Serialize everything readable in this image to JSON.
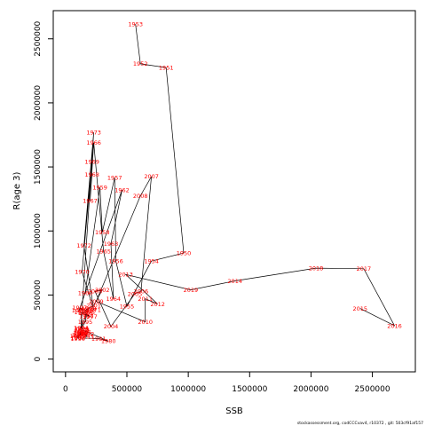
{
  "chart_data": {
    "type": "line",
    "xlabel": "SSB",
    "ylabel": "R(age 3)",
    "xlim": [
      -100000,
      2850000
    ],
    "ylim": [
      -100000,
      2720000
    ],
    "x_ticks": [
      "0",
      "500000",
      "1000000",
      "1500000",
      "2000000",
      "2500000"
    ],
    "x_tick_values": [
      0,
      500000,
      1000000,
      1500000,
      2000000,
      2500000
    ],
    "y_ticks": [
      "0",
      "500000",
      "1000000",
      "1500000",
      "2000000",
      "2500000"
    ],
    "y_tick_values": [
      0,
      500000,
      1000000,
      1500000,
      2000000,
      2500000
    ],
    "line_color": "#000000",
    "label_color": "#ff0000",
    "points": [
      {
        "year": "1950",
        "x": 963000,
        "y": 828000
      },
      {
        "year": "1951",
        "x": 820000,
        "y": 2275000
      },
      {
        "year": "1952",
        "x": 610000,
        "y": 2305000
      },
      {
        "year": "1953",
        "x": 570000,
        "y": 2615000
      },
      {
        "year": "1954",
        "x": 700000,
        "y": 765000
      },
      {
        "year": "1955",
        "x": 500000,
        "y": 412000
      },
      {
        "year": "1956",
        "x": 410000,
        "y": 765000
      },
      {
        "year": "1957",
        "x": 400000,
        "y": 1415000
      },
      {
        "year": "1958",
        "x": 300000,
        "y": 990000
      },
      {
        "year": "1959",
        "x": 280000,
        "y": 1340000
      },
      {
        "year": "1960",
        "x": 160000,
        "y": 515000
      },
      {
        "year": "1961",
        "x": 110000,
        "y": 380000
      },
      {
        "year": "1962",
        "x": 460000,
        "y": 1320000
      },
      {
        "year": "1963",
        "x": 370000,
        "y": 900000
      },
      {
        "year": "1964",
        "x": 390000,
        "y": 470000
      },
      {
        "year": "1965",
        "x": 310000,
        "y": 840000
      },
      {
        "year": "1966",
        "x": 230000,
        "y": 1690000
      },
      {
        "year": "1967",
        "x": 200000,
        "y": 1235000
      },
      {
        "year": "1968",
        "x": 215000,
        "y": 1440000
      },
      {
        "year": "1969",
        "x": 215000,
        "y": 1540000
      },
      {
        "year": "1970",
        "x": 135000,
        "y": 680000
      },
      {
        "year": "1971",
        "x": 230000,
        "y": 385000
      },
      {
        "year": "1972",
        "x": 150000,
        "y": 885000
      },
      {
        "year": "1973",
        "x": 230000,
        "y": 1770000
      },
      {
        "year": "1974",
        "x": 125000,
        "y": 240000
      },
      {
        "year": "1975",
        "x": 190000,
        "y": 395000
      },
      {
        "year": "1976",
        "x": 160000,
        "y": 360000
      },
      {
        "year": "1977",
        "x": 200000,
        "y": 330000
      },
      {
        "year": "1978",
        "x": 130000,
        "y": 365000
      },
      {
        "year": "1979",
        "x": 135000,
        "y": 230000
      },
      {
        "year": "1980",
        "x": 350000,
        "y": 140000
      },
      {
        "year": "1981",
        "x": 270000,
        "y": 160000
      },
      {
        "year": "1982",
        "x": 100000,
        "y": 165000
      },
      {
        "year": "1983",
        "x": 95000,
        "y": 180000
      },
      {
        "year": "1984",
        "x": 125000,
        "y": 205000
      },
      {
        "year": "1985",
        "x": 120000,
        "y": 200000
      },
      {
        "year": "1986",
        "x": 150000,
        "y": 210000
      },
      {
        "year": "1987",
        "x": 120000,
        "y": 190000
      },
      {
        "year": "1988",
        "x": 125000,
        "y": 210000
      },
      {
        "year": "1989",
        "x": 130000,
        "y": 225000
      },
      {
        "year": "1990",
        "x": 100000,
        "y": 160000
      },
      {
        "year": "1991",
        "x": 110000,
        "y": 185000
      },
      {
        "year": "1992",
        "x": 175000,
        "y": 195000
      },
      {
        "year": "1993",
        "x": 170000,
        "y": 175000
      },
      {
        "year": "1994",
        "x": 130000,
        "y": 240000
      },
      {
        "year": "1995",
        "x": 160000,
        "y": 290000
      },
      {
        "year": "1996",
        "x": 170000,
        "y": 335000
      },
      {
        "year": "1997",
        "x": 115000,
        "y": 400000
      },
      {
        "year": "1998",
        "x": 180000,
        "y": 365000
      },
      {
        "year": "1999",
        "x": 190000,
        "y": 395000
      },
      {
        "year": "2000",
        "x": 160000,
        "y": 380000
      },
      {
        "year": "2001",
        "x": 230000,
        "y": 420000
      },
      {
        "year": "2002",
        "x": 300000,
        "y": 540000
      },
      {
        "year": "2003",
        "x": 240000,
        "y": 530000
      },
      {
        "year": "2004",
        "x": 370000,
        "y": 255000
      },
      {
        "year": "2005",
        "x": 565000,
        "y": 510000
      },
      {
        "year": "2006",
        "x": 615000,
        "y": 530000
      },
      {
        "year": "2007",
        "x": 700000,
        "y": 1425000
      },
      {
        "year": "2008",
        "x": 610000,
        "y": 1275000
      },
      {
        "year": "2009",
        "x": 250000,
        "y": 450000
      },
      {
        "year": "2010",
        "x": 650000,
        "y": 290000
      },
      {
        "year": "2011",
        "x": 650000,
        "y": 470000
      },
      {
        "year": "2012",
        "x": 750000,
        "y": 430000
      },
      {
        "year": "2013",
        "x": 490000,
        "y": 660000
      },
      {
        "year": "2014",
        "x": 1380000,
        "y": 610000
      },
      {
        "year": "2015",
        "x": 2400000,
        "y": 395000
      },
      {
        "year": "2016",
        "x": 2680000,
        "y": 260000
      },
      {
        "year": "2017",
        "x": 2430000,
        "y": 705000
      },
      {
        "year": "2018",
        "x": 2040000,
        "y": 710000
      },
      {
        "year": "2019",
        "x": 1020000,
        "y": 540000
      }
    ],
    "path_order": [
      "1953",
      "1952",
      "1951",
      "1950",
      "1954",
      "1955",
      "1956",
      "1957",
      "1958",
      "1959",
      "1960",
      "1961",
      "1962",
      "1963",
      "1964",
      "1965",
      "1966",
      "1967",
      "1968",
      "1969",
      "1970",
      "1971",
      "1972",
      "1973",
      "1974",
      "1975",
      "1976",
      "1977",
      "1978",
      "1979",
      "1980",
      "1981",
      "1982",
      "1983",
      "1984",
      "1985",
      "1986",
      "1987",
      "1988",
      "1989",
      "1990",
      "1991",
      "1992",
      "1993",
      "1994",
      "1995",
      "1996",
      "1997",
      "1998",
      "1999",
      "2000",
      "2001",
      "2002",
      "2003",
      "2004",
      "2005",
      "2006",
      "2007",
      "2008",
      "2009",
      "2010",
      "2011",
      "2012",
      "2013",
      "2019",
      "2014",
      "2018",
      "2017",
      "2016",
      "2015"
    ]
  },
  "footer": {
    "text": "stockassessment.org,  codCCCvav4,  r10372 ,  git: 503cf91af157"
  }
}
